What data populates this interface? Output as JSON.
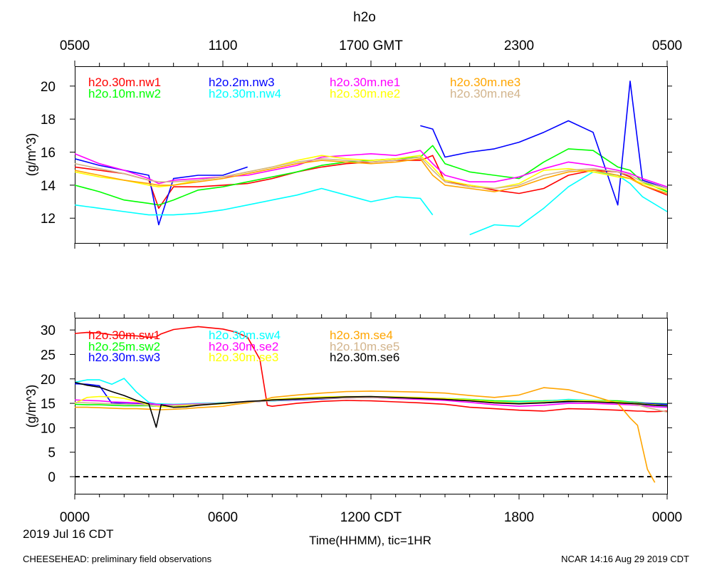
{
  "header": {
    "title": "h2o",
    "top_axis_ticks": [
      "0500",
      "1100",
      "1700 GMT",
      "2300",
      "0500"
    ]
  },
  "footer": {
    "left": "CHEESEHEAD: preliminary field observations",
    "right": "NCAR 14:16 Aug 29 2019 CDT",
    "date": "2019 Jul 16 CDT",
    "xlabel": "Time(HHMM), tic=1HR",
    "bottom_axis_ticks": [
      "0000",
      "0600",
      "1200 CDT",
      "1800",
      "0000"
    ]
  },
  "chart_data": [
    {
      "type": "line",
      "panel": "top",
      "title": "h2o",
      "ylabel": "(g/m^3)",
      "xlabel": "Time(HHMM), tic=1HR",
      "x_unit": "hours since 0000 CDT 2019 Jul 16",
      "xlim": [
        0,
        24
      ],
      "ylim": [
        10.5,
        21.2
      ],
      "yticks": [
        12,
        14,
        16,
        18,
        20
      ],
      "x": [
        0,
        1,
        2,
        3,
        3.4,
        4,
        5,
        6,
        7,
        8,
        9,
        10,
        11,
        12,
        13,
        14,
        14.5,
        15,
        16,
        17,
        18,
        19,
        20,
        21,
        22,
        22.5,
        23,
        24
      ],
      "series": [
        {
          "name": "h2o.30m.nw1",
          "color": "#ff0000",
          "values": [
            15.1,
            14.9,
            14.7,
            14.3,
            12.6,
            13.9,
            13.9,
            14.0,
            14.1,
            14.4,
            14.8,
            15.1,
            15.3,
            15.4,
            15.5,
            15.5,
            15.8,
            14.2,
            14.0,
            13.7,
            13.5,
            13.8,
            14.6,
            14.9,
            14.8,
            14.5,
            14.0,
            13.4
          ]
        },
        {
          "name": "h2o.10m.nw2",
          "color": "#00ff00",
          "values": [
            14.0,
            13.6,
            13.1,
            12.9,
            12.8,
            13.1,
            13.7,
            13.9,
            14.2,
            14.5,
            14.8,
            15.2,
            15.4,
            15.5,
            15.6,
            15.7,
            16.4,
            15.3,
            14.8,
            14.6,
            14.4,
            15.4,
            16.2,
            16.1,
            15.1,
            14.9,
            14.2,
            13.6
          ]
        },
        {
          "name": "h2o.2m.nw3",
          "color": "#0000ff",
          "values": [
            15.6,
            15.2,
            14.9,
            14.6,
            11.6,
            14.4,
            14.6,
            14.6,
            15.1,
            null,
            null,
            null,
            null,
            null,
            null,
            17.6,
            17.4,
            15.7,
            16.0,
            16.2,
            16.6,
            17.2,
            17.9,
            17.2,
            12.8,
            20.3,
            14.3,
            13.8
          ]
        },
        {
          "name": "h2o.30m.nw4",
          "color": "#00ffff",
          "values": [
            12.8,
            12.6,
            12.4,
            12.2,
            12.2,
            12.2,
            12.3,
            12.5,
            12.8,
            13.1,
            13.4,
            13.8,
            13.4,
            13.0,
            13.3,
            13.2,
            12.2,
            null,
            11.0,
            11.6,
            11.5,
            12.6,
            13.9,
            14.8,
            14.6,
            14.1,
            13.3,
            12.4
          ]
        },
        {
          "name": "h2o.30m.ne1",
          "color": "#ff00ff",
          "values": [
            15.9,
            15.3,
            14.9,
            14.4,
            14.1,
            14.3,
            14.4,
            14.5,
            14.6,
            14.9,
            15.2,
            15.7,
            15.8,
            15.9,
            15.8,
            16.1,
            15.3,
            14.6,
            14.2,
            14.2,
            14.5,
            15.0,
            15.4,
            15.2,
            14.9,
            14.7,
            14.4,
            13.9
          ]
        },
        {
          "name": "h2o.30m.ne2",
          "color": "#ffff00",
          "values": [
            14.8,
            14.5,
            14.3,
            14.0,
            13.9,
            14.0,
            14.3,
            14.5,
            14.8,
            15.1,
            15.5,
            15.8,
            15.6,
            15.5,
            15.6,
            15.8,
            15.1,
            14.3,
            14.0,
            13.8,
            14.1,
            14.9,
            15.0,
            14.8,
            14.5,
            14.4,
            14.1,
            13.7
          ]
        },
        {
          "name": "h2o.30m.ne3",
          "color": "#ffa500",
          "values": [
            14.9,
            14.6,
            14.3,
            14.1,
            14.0,
            14.0,
            14.2,
            14.4,
            14.7,
            15.0,
            15.3,
            15.5,
            15.4,
            15.3,
            15.4,
            15.6,
            14.6,
            14.0,
            13.8,
            13.6,
            13.9,
            14.4,
            14.8,
            14.9,
            14.6,
            14.4,
            14.0,
            13.5
          ]
        },
        {
          "name": "h2o.30m.ne4",
          "color": "#d2b48c",
          "values": [
            15.3,
            15.0,
            14.7,
            14.3,
            14.2,
            14.2,
            14.3,
            14.5,
            14.8,
            15.1,
            15.4,
            15.6,
            15.5,
            15.4,
            15.5,
            15.7,
            14.9,
            14.2,
            13.9,
            13.8,
            14.0,
            14.6,
            14.9,
            15.0,
            14.8,
            14.6,
            14.2,
            13.8
          ]
        }
      ]
    },
    {
      "type": "line",
      "panel": "bottom",
      "ylabel": "(g/m^3)",
      "xlabel": "Time(HHMM), tic=1HR",
      "x_unit": "hours since 0000 CDT 2019 Jul 16",
      "xlim": [
        0,
        24
      ],
      "ylim": [
        -3.5,
        32.5
      ],
      "yticks": [
        0,
        5,
        10,
        15,
        20,
        25,
        30
      ],
      "reference_line": {
        "y": 0,
        "style": "dashed",
        "color": "#000000"
      },
      "x": [
        0,
        0.5,
        1,
        1.5,
        2,
        2.5,
        3,
        3.3,
        3.5,
        4,
        4.5,
        5,
        6,
        6.5,
        7,
        7.5,
        7.8,
        8,
        9,
        10,
        11,
        12,
        13,
        14,
        15,
        16,
        17,
        18,
        19,
        20,
        21,
        22,
        22.5,
        22.8,
        23,
        23.2,
        23.5,
        24
      ],
      "series": [
        {
          "name": "h2o.30m.sw1",
          "color": "#ff0000",
          "values": [
            29.3,
            29.5,
            29.4,
            29.0,
            28.9,
            28.8,
            28.5,
            28.6,
            29.2,
            30.1,
            30.4,
            30.7,
            30.2,
            29.6,
            28.5,
            24.0,
            14.6,
            14.4,
            15.0,
            15.4,
            15.6,
            15.5,
            15.3,
            15.1,
            14.8,
            14.2,
            13.9,
            13.6,
            13.4,
            13.9,
            13.8,
            13.6,
            13.5,
            13.4,
            13.4,
            13.3,
            13.3,
            13.4
          ]
        },
        {
          "name": "h2o.25m.sw2",
          "color": "#00ff00",
          "values": [
            14.8,
            14.7,
            14.7,
            14.6,
            14.5,
            14.5,
            14.5,
            14.4,
            14.4,
            14.6,
            14.7,
            14.9,
            15.1,
            15.2,
            15.3,
            15.4,
            15.5,
            15.5,
            15.8,
            16.0,
            16.2,
            16.3,
            16.2,
            16.1,
            16.0,
            15.8,
            15.5,
            15.4,
            15.5,
            15.7,
            15.6,
            15.5,
            15.3,
            15.2,
            15.1,
            15.0,
            15.0,
            14.9
          ]
        },
        {
          "name": "h2o.30m.sw3",
          "color": "#0000ff",
          "values": [
            19.0,
            18.9,
            18.6,
            15.0,
            15.1,
            15.0,
            14.9,
            14.8,
            14.8,
            14.7,
            14.8,
            14.9,
            15.0,
            15.2,
            15.3,
            15.4,
            15.5,
            15.5,
            15.7,
            15.9,
            16.1,
            16.2,
            16.0,
            15.9,
            15.8,
            15.6,
            15.3,
            15.2,
            15.1,
            15.3,
            15.4,
            15.3,
            15.2,
            15.1,
            15.0,
            15.0,
            14.9,
            14.8
          ]
        },
        {
          "name": "h2o.30m.sw4",
          "color": "#00ffff",
          "values": [
            19.3,
            19.8,
            19.8,
            18.9,
            20.1,
            17.3,
            15.2,
            14.9,
            14.9,
            14.8,
            14.9,
            15.0,
            15.1,
            15.2,
            15.3,
            15.4,
            15.5,
            15.5,
            15.8,
            16.0,
            16.2,
            16.2,
            16.1,
            16.0,
            15.9,
            15.7,
            15.3,
            15.3,
            15.4,
            15.8,
            15.6,
            15.3,
            15.2,
            15.0,
            14.8,
            14.7,
            14.6,
            14.4
          ]
        },
        {
          "name": "h2o.30m.se2",
          "color": "#ff00ff",
          "values": [
            15.7,
            15.6,
            15.5,
            15.3,
            15.2,
            15.1,
            15.0,
            14.8,
            14.7,
            14.7,
            14.8,
            14.9,
            15.0,
            15.2,
            15.3,
            15.4,
            15.5,
            15.6,
            15.8,
            16.0,
            16.1,
            16.2,
            16.0,
            15.8,
            15.6,
            15.2,
            14.7,
            14.4,
            14.6,
            15.0,
            15.0,
            14.8,
            14.7,
            14.6,
            14.5,
            14.4,
            14.3,
            14.2
          ]
        },
        {
          "name": "h2o.30m.se3",
          "color": "#ffff00",
          "values": [
            15.0,
            16.2,
            16.4,
            16.3,
            16.0,
            15.4,
            14.7,
            14.4,
            14.3,
            14.3,
            14.5,
            14.7,
            14.9,
            15.1,
            15.3,
            15.5,
            15.7,
            15.8,
            16.1,
            16.3,
            16.4,
            16.4,
            16.3,
            16.2,
            16.0,
            15.7,
            15.3,
            15.1,
            15.3,
            15.6,
            15.5,
            15.3,
            15.1,
            15.0,
            14.9,
            14.8,
            14.7,
            14.5
          ]
        },
        {
          "name": "h2o.3m.se4",
          "color": "#ffa500",
          "values": [
            14.2,
            14.2,
            14.1,
            14.0,
            13.9,
            13.9,
            13.8,
            13.7,
            13.7,
            13.8,
            13.9,
            14.1,
            14.4,
            14.8,
            15.1,
            15.5,
            15.9,
            16.2,
            16.7,
            17.1,
            17.4,
            17.5,
            17.4,
            17.3,
            17.1,
            16.6,
            16.2,
            16.7,
            18.2,
            17.8,
            16.5,
            15.0,
            12.0,
            10.5,
            6.0,
            1.5,
            -1.2,
            null
          ]
        },
        {
          "name": "h2o.10m.se5",
          "color": "#d2b48c",
          "values": [
            15.2,
            15.1,
            15.0,
            14.9,
            14.8,
            14.7,
            14.6,
            14.5,
            14.5,
            14.6,
            14.7,
            14.8,
            15.0,
            15.1,
            15.3,
            15.4,
            15.5,
            15.6,
            15.8,
            16.0,
            16.1,
            16.2,
            16.1,
            16.0,
            15.8,
            15.5,
            15.1,
            15.0,
            15.2,
            15.4,
            15.3,
            15.1,
            14.9,
            14.7,
            14.4,
            14.1,
            13.8,
            13.2
          ]
        },
        {
          "name": "h2o.30m.se6",
          "color": "#000000",
          "values": [
            19.3,
            18.7,
            18.3,
            17.4,
            16.6,
            15.6,
            14.9,
            10.1,
            14.7,
            14.2,
            14.3,
            14.6,
            15.0,
            15.2,
            15.4,
            15.5,
            15.6,
            15.7,
            15.9,
            16.1,
            16.3,
            16.4,
            16.2,
            16.0,
            15.8,
            15.5,
            15.1,
            14.9,
            15.1,
            15.4,
            15.3,
            15.1,
            15.0,
            14.9,
            14.8,
            14.7,
            14.6,
            14.5
          ]
        }
      ]
    }
  ]
}
